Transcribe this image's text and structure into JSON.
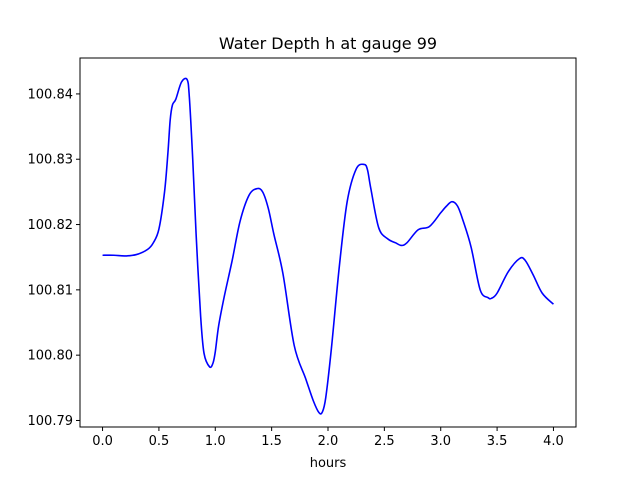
{
  "chart_data": {
    "type": "line",
    "title": "Water Depth h at gauge 99",
    "xlabel": "hours",
    "ylabel": "",
    "xlim": [
      -0.2,
      4.2
    ],
    "ylim": [
      100.789,
      100.8455
    ],
    "xticks": [
      0.0,
      0.5,
      1.0,
      1.5,
      2.0,
      2.5,
      3.0,
      3.5,
      4.0
    ],
    "xtick_labels": [
      "0.0",
      "0.5",
      "1.0",
      "1.5",
      "2.0",
      "2.5",
      "3.0",
      "3.5",
      "4.0"
    ],
    "yticks": [
      100.79,
      100.8,
      100.81,
      100.82,
      100.83,
      100.84
    ],
    "ytick_labels": [
      "100.79",
      "100.80",
      "100.81",
      "100.82",
      "100.83",
      "100.84"
    ],
    "grid": false,
    "series": [
      {
        "color": "#0000ff",
        "x": [
          0.0,
          0.1,
          0.2,
          0.3,
          0.4,
          0.45,
          0.5,
          0.55,
          0.58,
          0.6,
          0.62,
          0.65,
          0.7,
          0.75,
          0.77,
          0.8,
          0.83,
          0.87,
          0.9,
          0.95,
          0.98,
          1.0,
          1.03,
          1.08,
          1.15,
          1.22,
          1.3,
          1.37,
          1.42,
          1.47,
          1.52,
          1.6,
          1.7,
          1.8,
          1.87,
          1.92,
          1.95,
          1.98,
          2.03,
          2.1,
          2.17,
          2.25,
          2.32,
          2.35,
          2.38,
          2.45,
          2.53,
          2.6,
          2.65,
          2.7,
          2.8,
          2.9,
          3.0,
          3.05,
          3.1,
          3.15,
          3.2,
          3.27,
          3.35,
          3.42,
          3.45,
          3.5,
          3.6,
          3.7,
          3.75,
          3.82,
          3.9,
          4.0
        ],
        "y": [
          100.8153,
          100.8153,
          100.8152,
          100.8154,
          100.8162,
          100.8172,
          100.8193,
          100.825,
          100.831,
          100.836,
          100.8383,
          100.8392,
          100.8418,
          100.8422,
          100.8395,
          100.83,
          100.8185,
          100.806,
          100.8003,
          100.7982,
          100.7988,
          100.8005,
          100.8045,
          100.809,
          100.8145,
          100.8205,
          100.8245,
          100.8255,
          100.825,
          100.8225,
          100.8185,
          100.8125,
          100.8015,
          100.7965,
          100.793,
          100.7912,
          100.7913,
          100.7935,
          100.801,
          100.8135,
          100.8235,
          100.8285,
          100.8292,
          100.8284,
          100.8255,
          100.8195,
          100.8178,
          100.8172,
          100.8168,
          100.8172,
          100.8192,
          100.8197,
          100.8218,
          100.8228,
          100.8235,
          100.8228,
          100.8205,
          100.8165,
          100.81,
          100.8088,
          100.8087,
          100.8095,
          100.8128,
          100.8148,
          100.8145,
          100.8123,
          100.8095,
          100.8078
        ]
      }
    ]
  }
}
